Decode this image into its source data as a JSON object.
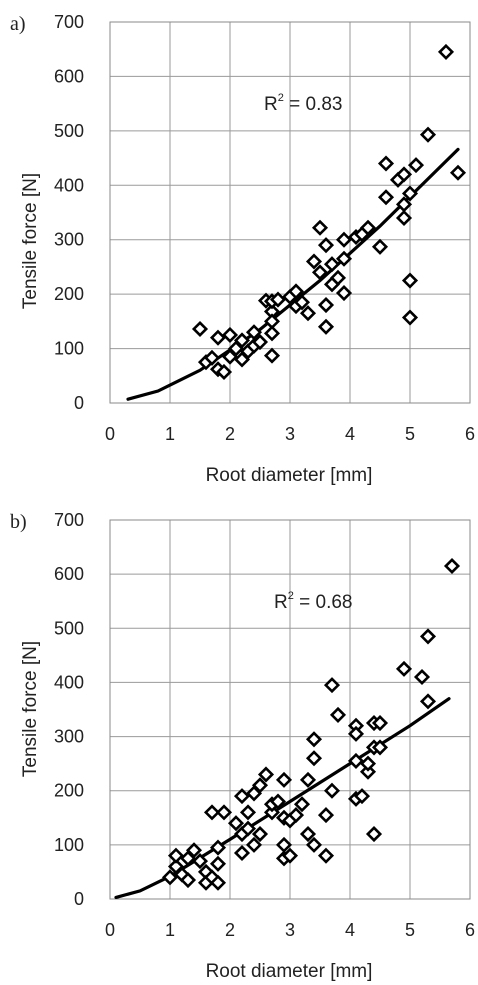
{
  "chart_data": [
    {
      "panel": "a)",
      "type": "scatter",
      "xlabel": "Root diameter [mm]",
      "ylabel": "Tensile force  [N]",
      "xlim": [
        0,
        6
      ],
      "ylim": [
        0,
        700
      ],
      "xticks": [
        "0",
        "1",
        "2",
        "3",
        "4",
        "5",
        "6"
      ],
      "yticks": [
        "0",
        "100",
        "200",
        "300",
        "400",
        "500",
        "600",
        "700"
      ],
      "grid": true,
      "annotation": {
        "base": "R",
        "exponent": "2",
        "rest": " = 0.83"
      },
      "trendline": {
        "type": "power",
        "x": [
          0.3,
          0.8,
          1.5,
          2.5,
          3.5,
          4.5,
          5.8
        ],
        "y": [
          7,
          22,
          60,
          135,
          225,
          325,
          466
        ]
      },
      "points": [
        [
          1.5,
          136
        ],
        [
          1.6,
          75
        ],
        [
          1.7,
          83
        ],
        [
          1.8,
          120
        ],
        [
          1.8,
          62
        ],
        [
          1.9,
          57
        ],
        [
          2.0,
          85
        ],
        [
          2.0,
          125
        ],
        [
          2.1,
          100
        ],
        [
          2.2,
          115
        ],
        [
          2.2,
          80
        ],
        [
          2.3,
          95
        ],
        [
          2.4,
          130
        ],
        [
          2.4,
          105
        ],
        [
          2.5,
          112
        ],
        [
          2.6,
          188
        ],
        [
          2.7,
          168
        ],
        [
          2.7,
          150
        ],
        [
          2.7,
          128
        ],
        [
          2.7,
          87
        ],
        [
          2.7,
          187
        ],
        [
          2.8,
          190
        ],
        [
          3.0,
          195
        ],
        [
          3.1,
          205
        ],
        [
          3.1,
          178
        ],
        [
          3.2,
          185
        ],
        [
          3.3,
          165
        ],
        [
          3.4,
          260
        ],
        [
          3.5,
          322
        ],
        [
          3.5,
          240
        ],
        [
          3.6,
          290
        ],
        [
          3.6,
          180
        ],
        [
          3.6,
          140
        ],
        [
          3.7,
          255
        ],
        [
          3.7,
          218
        ],
        [
          3.8,
          230
        ],
        [
          3.9,
          300
        ],
        [
          3.9,
          265
        ],
        [
          3.9,
          202
        ],
        [
          4.1,
          305
        ],
        [
          4.2,
          310
        ],
        [
          4.3,
          322
        ],
        [
          4.5,
          287
        ],
        [
          4.6,
          440
        ],
        [
          4.6,
          378
        ],
        [
          4.8,
          410
        ],
        [
          4.9,
          420
        ],
        [
          4.9,
          365
        ],
        [
          4.9,
          340
        ],
        [
          5.0,
          385
        ],
        [
          5.0,
          225
        ],
        [
          5.0,
          157
        ],
        [
          5.1,
          437
        ],
        [
          5.3,
          493
        ],
        [
          5.6,
          645
        ],
        [
          5.8,
          423
        ]
      ]
    },
    {
      "panel": "b)",
      "type": "scatter",
      "xlabel": "Root diameter [mm]",
      "ylabel": "Tensile force  [N]",
      "xlim": [
        0,
        6
      ],
      "ylim": [
        0,
        700
      ],
      "xticks": [
        "0",
        "1",
        "2",
        "3",
        "4",
        "5",
        "6"
      ],
      "yticks": [
        "0",
        "100",
        "200",
        "300",
        "400",
        "500",
        "600",
        "700"
      ],
      "grid": true,
      "annotation": {
        "base": "R",
        "exponent": "2",
        "rest": " = 0.68"
      },
      "trendline": {
        "type": "power",
        "x": [
          0.1,
          0.5,
          1.0,
          2.0,
          3.0,
          4.0,
          5.0,
          5.65
        ],
        "y": [
          3,
          15,
          42,
          110,
          180,
          250,
          320,
          370
        ]
      },
      "points": [
        [
          1.0,
          40
        ],
        [
          1.1,
          60
        ],
        [
          1.1,
          80
        ],
        [
          1.2,
          45
        ],
        [
          1.3,
          35
        ],
        [
          1.3,
          75
        ],
        [
          1.4,
          90
        ],
        [
          1.5,
          70
        ],
        [
          1.6,
          50
        ],
        [
          1.6,
          30
        ],
        [
          1.7,
          160
        ],
        [
          1.7,
          40
        ],
        [
          1.8,
          95
        ],
        [
          1.8,
          65
        ],
        [
          1.8,
          30
        ],
        [
          1.9,
          160
        ],
        [
          2.1,
          140
        ],
        [
          2.2,
          190
        ],
        [
          2.2,
          120
        ],
        [
          2.2,
          85
        ],
        [
          2.3,
          160
        ],
        [
          2.3,
          130
        ],
        [
          2.4,
          195
        ],
        [
          2.4,
          100
        ],
        [
          2.5,
          210
        ],
        [
          2.5,
          120
        ],
        [
          2.6,
          230
        ],
        [
          2.7,
          160
        ],
        [
          2.7,
          175
        ],
        [
          2.8,
          180
        ],
        [
          2.9,
          220
        ],
        [
          2.9,
          150
        ],
        [
          2.9,
          100
        ],
        [
          2.9,
          75
        ],
        [
          3.0,
          80
        ],
        [
          3.0,
          145
        ],
        [
          3.1,
          155
        ],
        [
          3.2,
          175
        ],
        [
          3.3,
          220
        ],
        [
          3.3,
          120
        ],
        [
          3.4,
          260
        ],
        [
          3.4,
          295
        ],
        [
          3.4,
          100
        ],
        [
          3.6,
          155
        ],
        [
          3.6,
          80
        ],
        [
          3.7,
          395
        ],
        [
          3.7,
          200
        ],
        [
          3.8,
          340
        ],
        [
          4.1,
          320
        ],
        [
          4.1,
          255
        ],
        [
          4.1,
          305
        ],
        [
          4.1,
          185
        ],
        [
          4.2,
          190
        ],
        [
          4.3,
          235
        ],
        [
          4.3,
          250
        ],
        [
          4.4,
          120
        ],
        [
          4.4,
          280
        ],
        [
          4.4,
          325
        ],
        [
          4.5,
          325
        ],
        [
          4.5,
          280
        ],
        [
          4.9,
          425
        ],
        [
          5.2,
          410
        ],
        [
          5.3,
          365
        ],
        [
          5.3,
          485
        ],
        [
          5.7,
          615
        ]
      ]
    }
  ]
}
